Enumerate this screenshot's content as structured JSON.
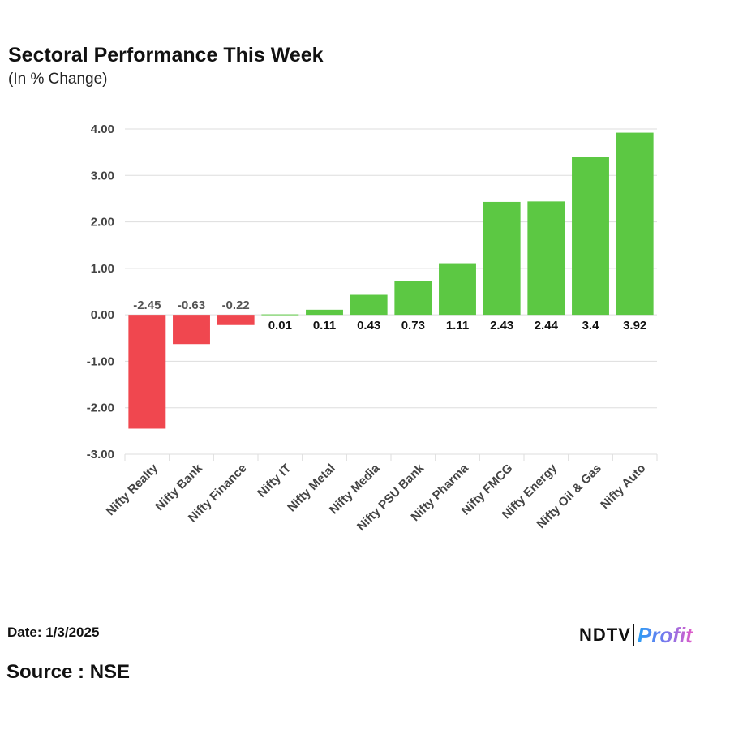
{
  "header": {
    "title": "Sectoral Performance This Week",
    "subtitle": "(In % Change)"
  },
  "footer": {
    "date": "Date: 1/3/2025",
    "source": "Source : NSE",
    "logo_left": "NDTV",
    "logo_right": "Profit"
  },
  "colors": {
    "positive": "#5cc843",
    "negative": "#f0474f",
    "grid": "#dddddd",
    "axis_text": "#444444"
  },
  "chart_data": {
    "type": "bar",
    "title": "Sectoral Performance This Week",
    "subtitle": "(In % Change)",
    "xlabel": "",
    "ylabel": "",
    "ylim": [
      -3,
      4
    ],
    "yticks": [
      4,
      3,
      2,
      1,
      0,
      -1,
      -2,
      -3
    ],
    "ytick_labels": [
      "4.00",
      "3.00",
      "2.00",
      "1.00",
      "0.00",
      "-1.00",
      "-2.00",
      "-3.00"
    ],
    "grid": true,
    "categories": [
      "Nifty Realty",
      "Nifty Bank",
      "Nifty Finance",
      "Nifty IT",
      "Nifty Metal",
      "Nifty Media",
      "Nifty PSU Bank",
      "Nifty Pharma",
      "Nifty FMCG",
      "Nifty Energy",
      "Nifty Oil & Gas",
      "Nifty Auto"
    ],
    "values": [
      -2.45,
      -0.63,
      -0.22,
      0.01,
      0.11,
      0.43,
      0.73,
      1.11,
      2.43,
      2.44,
      3.4,
      3.92
    ],
    "data_labels": [
      "-2.45",
      "-0.63",
      "-0.22",
      "0.01",
      "0.11",
      "0.43",
      "0.73",
      "1.11",
      "2.43",
      "2.44",
      "3.4",
      "3.92"
    ]
  }
}
